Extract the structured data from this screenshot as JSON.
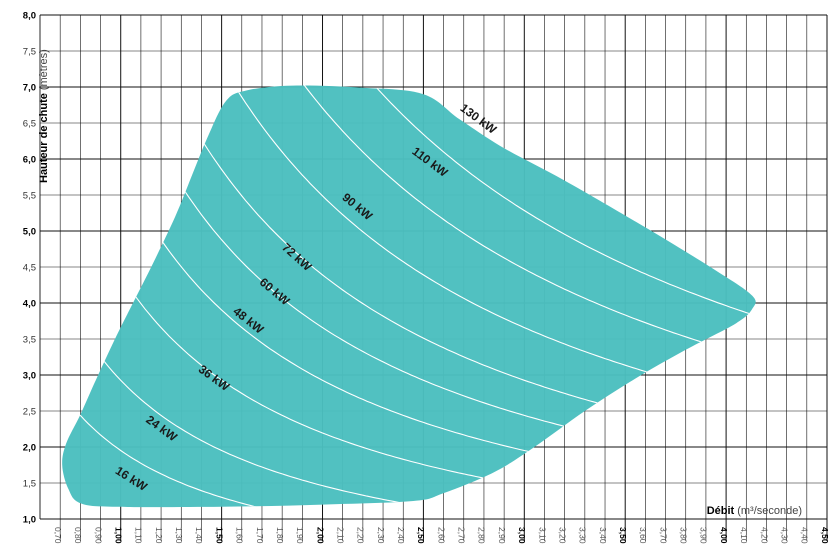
{
  "chart_data": {
    "type": "area",
    "xlabel_bold": "Débit",
    "xlabel_unit": "(m³/seconde)",
    "ylabel_bold": "Hauteur de chute",
    "ylabel_unit": "(mètres)",
    "xlim": [
      0.6,
      4.5
    ],
    "ylim": [
      1.0,
      8.0
    ],
    "x_ticks": [
      "0,70",
      "0,80",
      "0,90",
      "1,00",
      "1,10",
      "1,20",
      "1,30",
      "1,40",
      "1,50",
      "1,60",
      "1,70",
      "1,80",
      "1,90",
      "2,00",
      "2,10",
      "2,20",
      "2,30",
      "2,40",
      "2,50",
      "2,60",
      "2,70",
      "2,80",
      "2,90",
      "3,00",
      "3,10",
      "3,20",
      "3,30",
      "3,40",
      "3,50",
      "3,60",
      "3,70",
      "3,80",
      "3,90",
      "4,00",
      "4,10",
      "4,20",
      "4,30",
      "4,40",
      "4,50"
    ],
    "x_tick_values": [
      0.7,
      0.8,
      0.9,
      1.0,
      1.1,
      1.2,
      1.3,
      1.4,
      1.5,
      1.6,
      1.7,
      1.8,
      1.9,
      2.0,
      2.1,
      2.2,
      2.3,
      2.4,
      2.5,
      2.6,
      2.7,
      2.8,
      2.9,
      3.0,
      3.1,
      3.2,
      3.3,
      3.4,
      3.5,
      3.6,
      3.7,
      3.8,
      3.9,
      4.0,
      4.1,
      4.2,
      4.3,
      4.4,
      4.5
    ],
    "x_bold_ticks": [
      "1,00",
      "1,50",
      "2,00",
      "2,50",
      "3,00",
      "3,50",
      "4,00",
      "4,50"
    ],
    "y_ticks": [
      "1,0",
      "1,5",
      "2,0",
      "2,5",
      "3,0",
      "3,5",
      "4,0",
      "4,5",
      "5,0",
      "5,5",
      "6,0",
      "6,5",
      "7,0",
      "7,5",
      "8,0"
    ],
    "y_tick_values": [
      1.0,
      1.5,
      2.0,
      2.5,
      3.0,
      3.5,
      4.0,
      4.5,
      5.0,
      5.5,
      6.0,
      6.5,
      7.0,
      7.5,
      8.0
    ],
    "y_bold_ticks": [
      "1,0",
      "2,0",
      "3,0",
      "4,0",
      "5,0",
      "6,0",
      "7,0",
      "8,0"
    ],
    "operating_region": {
      "color": "#4bbfbf",
      "boundary": [
        [
          0.73,
          2.05
        ],
        [
          0.71,
          1.75
        ],
        [
          0.74,
          1.42
        ],
        [
          0.8,
          1.22
        ],
        [
          0.98,
          1.17
        ],
        [
          1.5,
          1.17
        ],
        [
          2.0,
          1.2
        ],
        [
          2.45,
          1.25
        ],
        [
          2.6,
          1.36
        ],
        [
          2.85,
          1.65
        ],
        [
          3.05,
          2.0
        ],
        [
          3.3,
          2.5
        ],
        [
          3.55,
          2.95
        ],
        [
          3.8,
          3.35
        ],
        [
          4.05,
          3.72
        ],
        [
          4.13,
          3.92
        ],
        [
          4.13,
          4.1
        ],
        [
          3.95,
          4.45
        ],
        [
          3.6,
          5.05
        ],
        [
          3.2,
          5.7
        ],
        [
          2.9,
          6.15
        ],
        [
          2.68,
          6.55
        ],
        [
          2.5,
          6.9
        ],
        [
          2.2,
          6.99
        ],
        [
          1.85,
          7.02
        ],
        [
          1.62,
          6.95
        ],
        [
          1.52,
          6.8
        ],
        [
          1.43,
          6.3
        ],
        [
          1.35,
          5.75
        ],
        [
          1.27,
          5.2
        ],
        [
          1.16,
          4.55
        ],
        [
          1.07,
          4.05
        ],
        [
          0.98,
          3.55
        ],
        [
          0.88,
          2.95
        ],
        [
          0.8,
          2.45
        ]
      ]
    },
    "power_curves": [
      {
        "label": "16 kW",
        "power": 16,
        "label_x": 1.05,
        "label_y": 1.55
      },
      {
        "label": "24 kW",
        "power": 24,
        "label_x": 1.2,
        "label_y": 2.25
      },
      {
        "label": "36 kW",
        "power": 36,
        "label_x": 1.46,
        "label_y": 2.95
      },
      {
        "label": "48 kW",
        "power": 48,
        "label_x": 1.63,
        "label_y": 3.75
      },
      {
        "label": "60 kW",
        "power": 60,
        "label_x": 1.76,
        "label_y": 4.15
      },
      {
        "label": "72 kW",
        "power": 72,
        "label_x": 1.87,
        "label_y": 4.63
      },
      {
        "label": "90 kW",
        "power": 90,
        "label_x": 2.17,
        "label_y": 5.33
      },
      {
        "label": "110 kW",
        "power": 110,
        "label_x": 2.53,
        "label_y": 5.95
      },
      {
        "label": "130 kW",
        "power": 130,
        "label_x": 2.77,
        "label_y": 6.55
      }
    ]
  }
}
